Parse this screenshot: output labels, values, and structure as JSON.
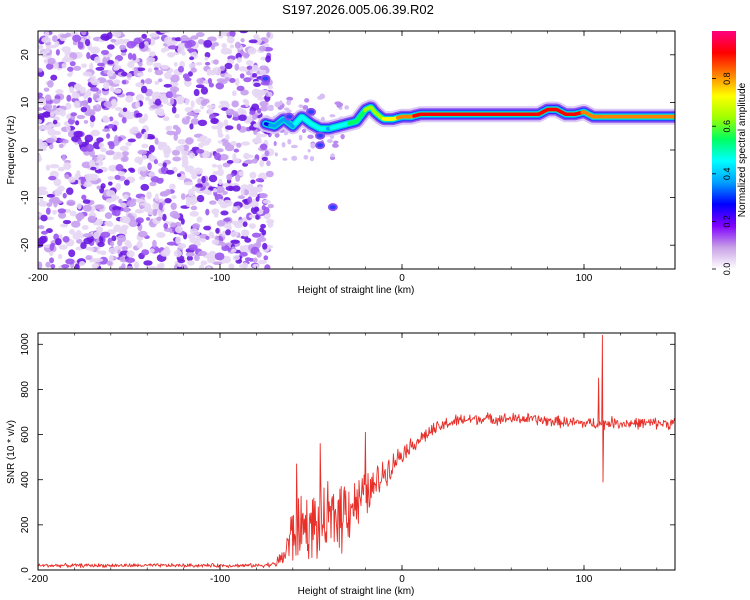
{
  "title": "S197.2026.005.06.39.R02",
  "chart_data": [
    {
      "type": "heatmap",
      "name": "spectrogram",
      "xlabel": "Height of straight line (km)",
      "ylabel": "Frequency (Hz)",
      "xlim": [
        -200,
        150
      ],
      "ylim": [
        -25,
        25
      ],
      "xticks": [
        -200,
        -100,
        0,
        100
      ],
      "yticks": [
        -20,
        -10,
        0,
        10,
        20
      ],
      "noise_region_x": [
        -200,
        -75
      ],
      "ridge": {
        "x": [
          -75,
          -70,
          -65,
          -60,
          -55,
          -50,
          -45,
          -40,
          -35,
          -30,
          -25,
          -20,
          -17,
          -15,
          -12,
          -10,
          -5,
          0,
          5,
          10,
          20,
          40,
          60,
          75,
          80,
          85,
          90,
          95,
          100,
          105,
          110,
          120,
          130,
          140,
          150
        ],
        "y": [
          5.5,
          5,
          6.5,
          5,
          7,
          5.5,
          4.5,
          4.5,
          5,
          5.5,
          6,
          8.5,
          9,
          8,
          7,
          6.5,
          6.5,
          7,
          7,
          7.5,
          7.5,
          7.5,
          7.5,
          7.5,
          8.5,
          8.5,
          7.5,
          7.5,
          8,
          7,
          7,
          7,
          7,
          7,
          7
        ],
        "amp": [
          0.3,
          0.35,
          0.4,
          0.4,
          0.45,
          0.5,
          0.45,
          0.4,
          0.45,
          0.5,
          0.55,
          0.6,
          0.6,
          0.6,
          0.65,
          0.7,
          0.75,
          0.8,
          0.85,
          0.9,
          0.95,
          0.95,
          0.95,
          0.95,
          0.9,
          0.9,
          0.9,
          0.9,
          0.85,
          0.85,
          0.85,
          0.85,
          0.85,
          0.85,
          0.85
        ]
      },
      "colorbar": {
        "label": "Normalized spectral amplitude",
        "range": [
          0,
          1
        ],
        "ticks": [
          "0.0",
          "0.2",
          "0.4",
          "0.6",
          "0.8"
        ],
        "colors": [
          "#ffffff",
          "#c8a0e6",
          "#8000ff",
          "#0000ff",
          "#00a0ff",
          "#00ffff",
          "#00ff60",
          "#a0ff00",
          "#ffff00",
          "#ff8000",
          "#ff0000",
          "#ff0080"
        ]
      }
    },
    {
      "type": "line",
      "name": "snr",
      "xlabel": "Height of straight line (km)",
      "ylabel": "SNR (10 * v/v)",
      "xlim": [
        -200,
        150
      ],
      "ylim": [
        0,
        1050
      ],
      "xticks": [
        -200,
        -100,
        0,
        100
      ],
      "yticks": [
        0,
        200,
        400,
        600,
        800,
        1000
      ],
      "color": "#e8302a",
      "x": [
        -200,
        -150,
        -100,
        -80,
        -70,
        -65,
        -62,
        -58,
        -55,
        -50,
        -45,
        -40,
        -35,
        -30,
        -25,
        -20,
        -15,
        -10,
        -5,
        0,
        5,
        10,
        15,
        20,
        25,
        30,
        40,
        50,
        60,
        70,
        80,
        90,
        100,
        105,
        108,
        110,
        112,
        115,
        120,
        130,
        140,
        150
      ],
      "baseline": [
        20,
        20,
        20,
        20,
        25,
        60,
        130,
        180,
        200,
        190,
        200,
        220,
        250,
        290,
        300,
        330,
        370,
        430,
        470,
        520,
        550,
        580,
        610,
        630,
        650,
        660,
        670,
        670,
        670,
        670,
        660,
        655,
        650,
        650,
        650,
        640,
        650,
        655,
        650,
        650,
        650,
        650
      ],
      "noise": [
        10,
        10,
        10,
        10,
        15,
        60,
        150,
        200,
        180,
        170,
        200,
        180,
        220,
        200,
        150,
        120,
        100,
        80,
        60,
        50,
        40,
        40,
        40,
        35,
        35,
        35,
        30,
        30,
        30,
        30,
        30,
        30,
        30,
        30,
        30,
        30,
        30,
        30,
        30,
        30,
        30,
        30
      ],
      "spikes": [
        {
          "x": -20,
          "y": 610
        },
        {
          "x": -45,
          "y": 560
        },
        {
          "x": -58,
          "y": 470
        },
        {
          "x": 108,
          "y": 850
        },
        {
          "x": 110,
          "y": 1040
        },
        {
          "x": 110.5,
          "y": 390
        }
      ]
    }
  ]
}
